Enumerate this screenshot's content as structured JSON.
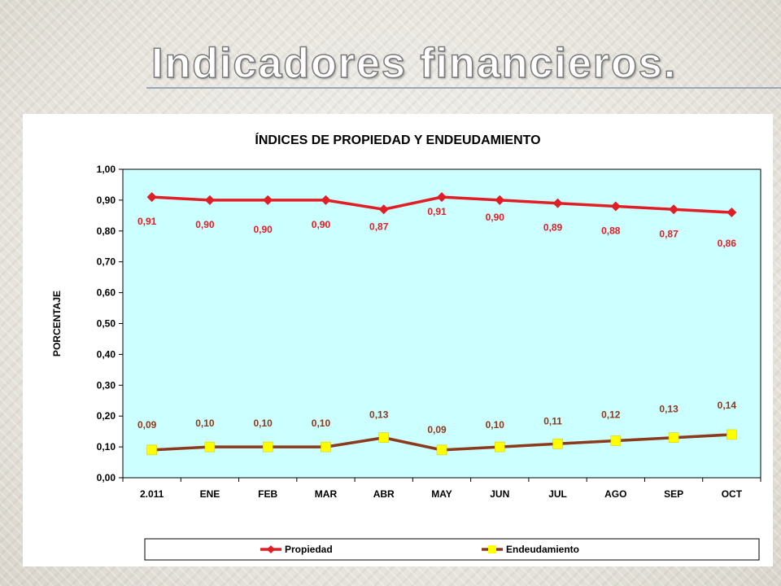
{
  "slide": {
    "title": "Indicadores financieros."
  },
  "chart_data": {
    "type": "line",
    "title": "ÍNDICES DE PROPIEDAD Y ENDEUDAMIENTO",
    "xlabel": "",
    "ylabel": "PORCENTAJE",
    "categories": [
      "2.011",
      "ENE",
      "FEB",
      "MAR",
      "ABR",
      "MAY",
      "JUN",
      "JUL",
      "AGO",
      "SEP",
      "OCT"
    ],
    "ylim": [
      0,
      1
    ],
    "yticks": [
      "0,00",
      "0,10",
      "0,20",
      "0,30",
      "0,40",
      "0,50",
      "0,60",
      "0,70",
      "0,80",
      "0,90",
      "1,00"
    ],
    "grid": false,
    "legend": "bottom",
    "plot_background": "#ccffff",
    "series": [
      {
        "name": "Propiedad",
        "color": "#e01e26",
        "marker": "diamond",
        "values": [
          0.91,
          0.9,
          0.9,
          0.9,
          0.87,
          0.91,
          0.9,
          0.89,
          0.88,
          0.87,
          0.86
        ],
        "labels": [
          "0,91",
          "0,90",
          "0,90",
          "0,90",
          "0,87",
          "0,91",
          "0,90",
          "0,89",
          "0,88",
          "0,87",
          "0,86"
        ]
      },
      {
        "name": "Endeudamiento",
        "color": "#8b3a1c",
        "marker_color": "#ffff00",
        "marker": "square",
        "values": [
          0.09,
          0.1,
          0.1,
          0.1,
          0.13,
          0.09,
          0.1,
          0.11,
          0.12,
          0.13,
          0.14
        ],
        "labels": [
          "0,09",
          "0,10",
          "0,10",
          "0,10",
          "0,13",
          "0,09",
          "0,10",
          "0,11",
          "0,12",
          "0,13",
          "0,14"
        ]
      }
    ]
  }
}
